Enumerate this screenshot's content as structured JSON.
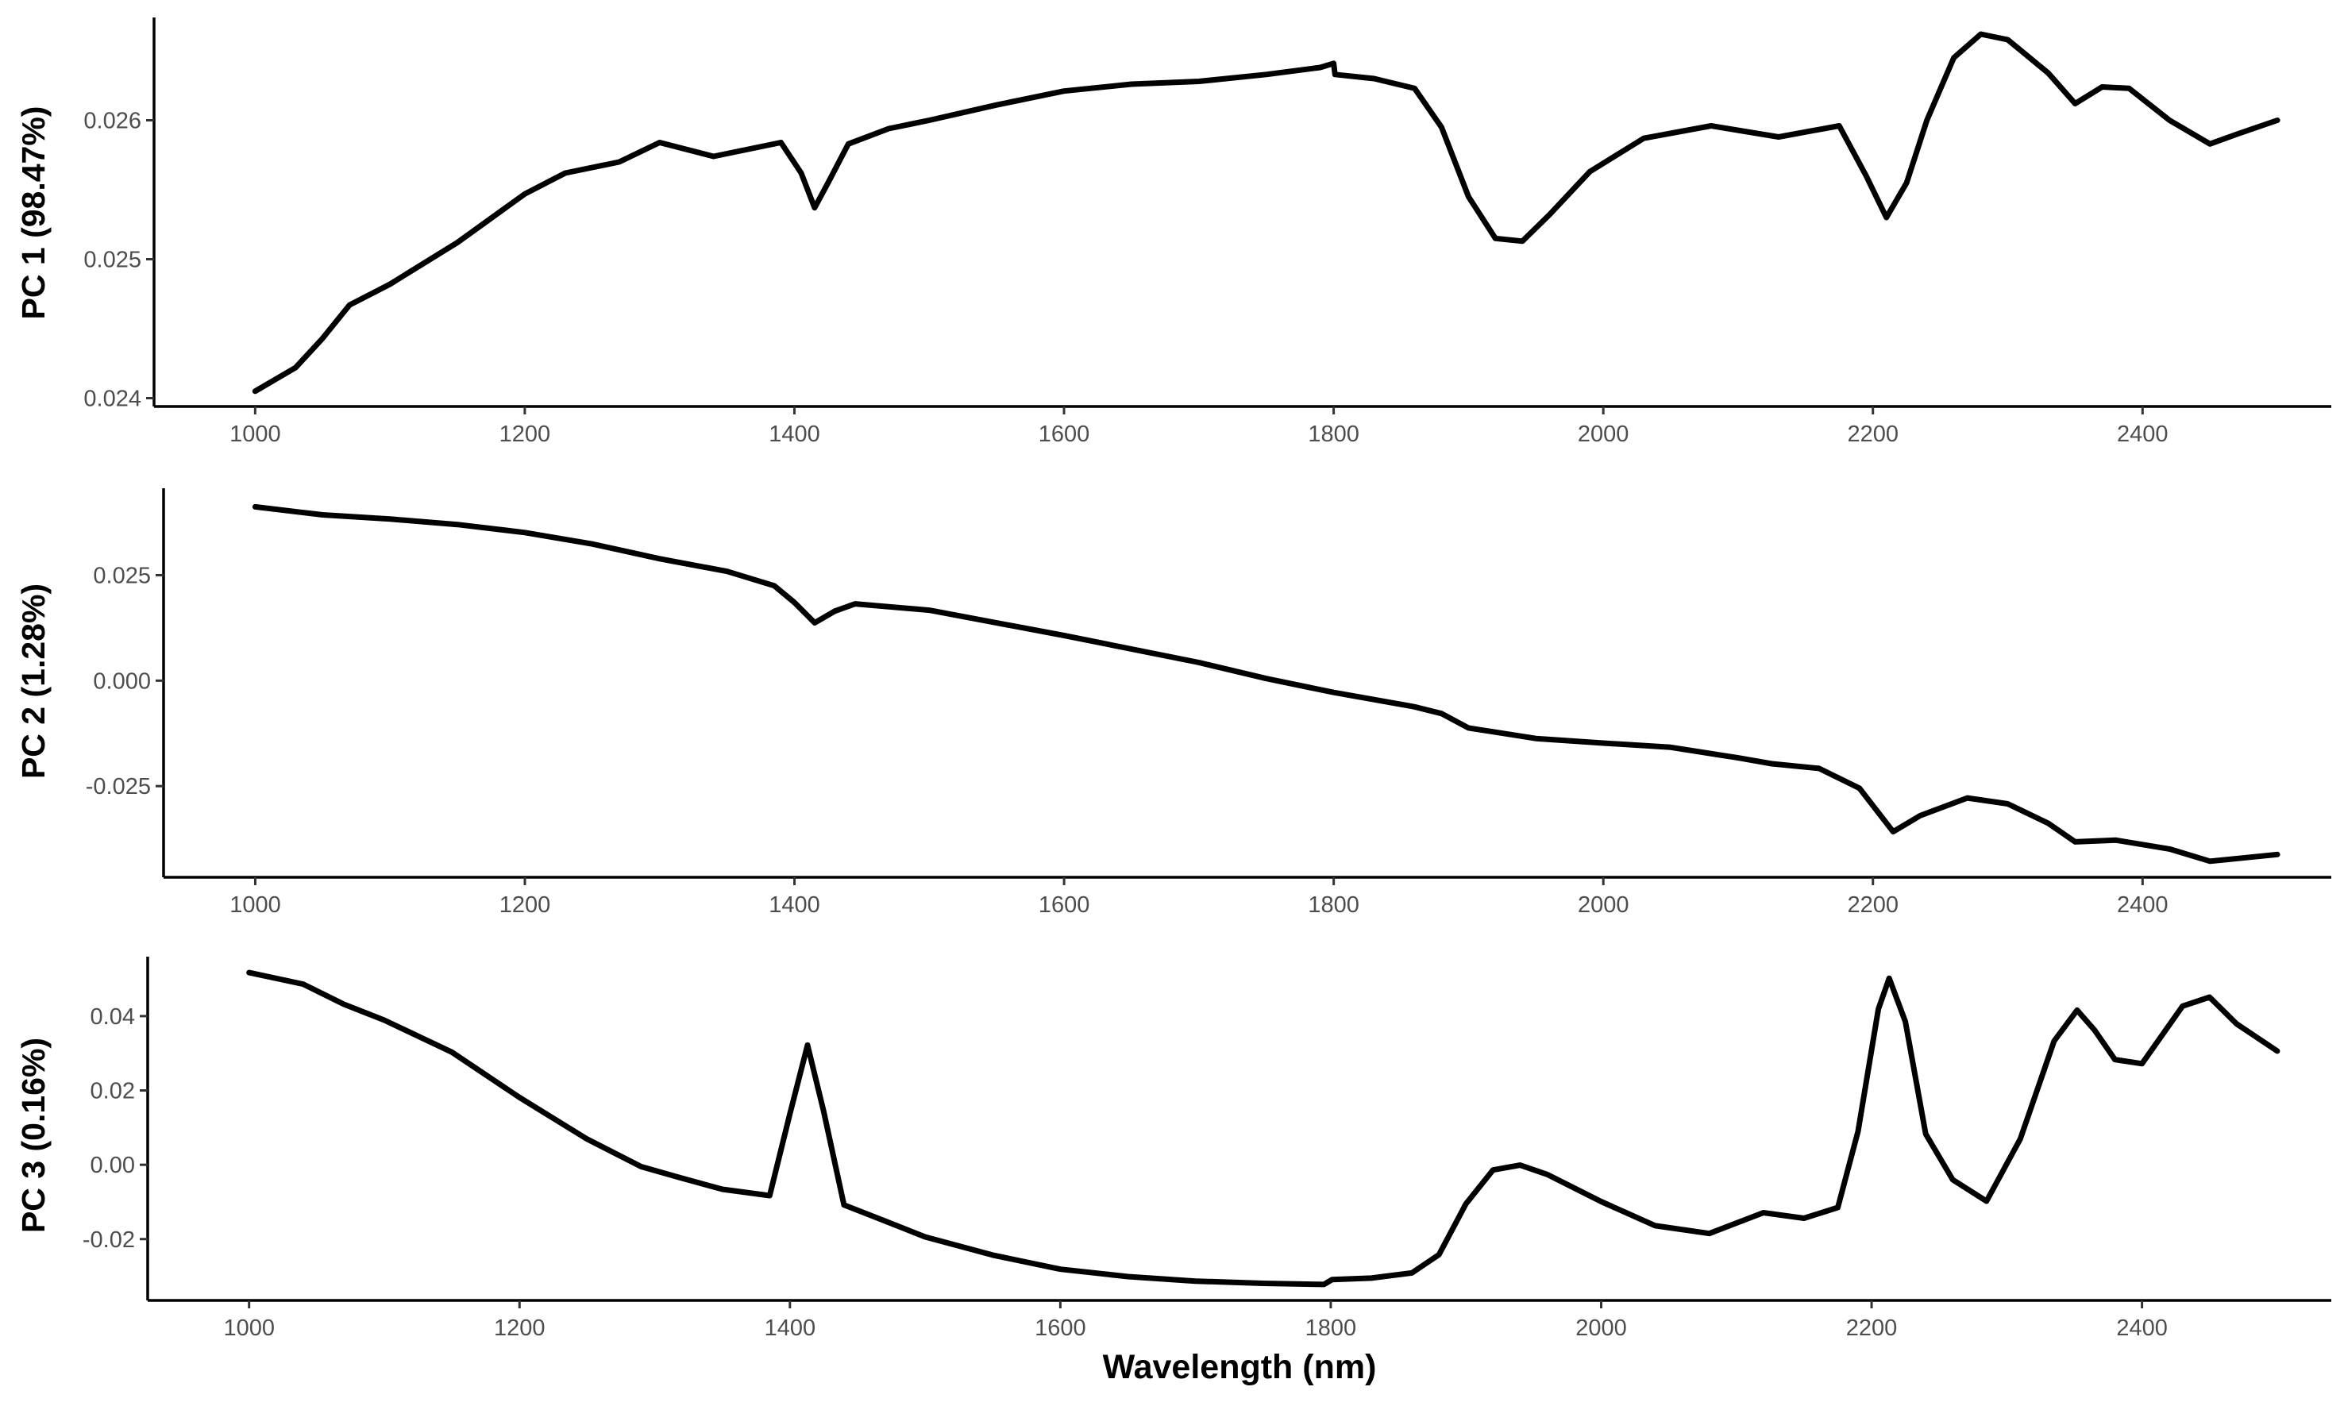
{
  "chart_data": [
    {
      "type": "line",
      "ylabel": "PC 1 (98.47%)",
      "xlabel": "",
      "xlim": [
        925,
        2540
      ],
      "ylim": [
        0.02394,
        0.02674
      ],
      "x_ticks": [
        1000,
        1200,
        1400,
        1600,
        1800,
        2000,
        2200,
        2400
      ],
      "x_tick_labels": [
        "1000",
        "1200",
        "1400",
        "1600",
        "1800",
        "2000",
        "2200",
        "2400"
      ],
      "y_ticks": [
        0.024,
        0.025,
        0.026
      ],
      "y_tick_labels": [
        "0.024",
        "0.025",
        "0.026"
      ],
      "grid": false,
      "series": [
        {
          "color": "#000000",
          "points": [
            [
              1000,
              0.02405
            ],
            [
              1030,
              0.02422
            ],
            [
              1050,
              0.02443
            ],
            [
              1070,
              0.02467
            ],
            [
              1100,
              0.02482
            ],
            [
              1150,
              0.02512
            ],
            [
              1200,
              0.02547
            ],
            [
              1230,
              0.02562
            ],
            [
              1270,
              0.0257
            ],
            [
              1300,
              0.02584
            ],
            [
              1340,
              0.02574
            ],
            [
              1370,
              0.0258
            ],
            [
              1390,
              0.02584
            ],
            [
              1405,
              0.02562
            ],
            [
              1415,
              0.02537
            ],
            [
              1425,
              0.02555
            ],
            [
              1440,
              0.02583
            ],
            [
              1470,
              0.02594
            ],
            [
              1500,
              0.026
            ],
            [
              1550,
              0.02611
            ],
            [
              1600,
              0.02621
            ],
            [
              1650,
              0.02626
            ],
            [
              1700,
              0.02628
            ],
            [
              1750,
              0.02633
            ],
            [
              1790,
              0.02638
            ],
            [
              1800,
              0.02641
            ],
            [
              1801,
              0.02633
            ],
            [
              1830,
              0.0263
            ],
            [
              1860,
              0.02623
            ],
            [
              1880,
              0.02595
            ],
            [
              1900,
              0.02545
            ],
            [
              1920,
              0.02515
            ],
            [
              1940,
              0.02513
            ],
            [
              1960,
              0.02532
            ],
            [
              1990,
              0.02563
            ],
            [
              2030,
              0.02587
            ],
            [
              2080,
              0.02596
            ],
            [
              2130,
              0.02588
            ],
            [
              2175,
              0.02596
            ],
            [
              2195,
              0.0256
            ],
            [
              2210,
              0.0253
            ],
            [
              2225,
              0.02555
            ],
            [
              2240,
              0.026
            ],
            [
              2260,
              0.02645
            ],
            [
              2280,
              0.02662
            ],
            [
              2300,
              0.02658
            ],
            [
              2330,
              0.02634
            ],
            [
              2350,
              0.02612
            ],
            [
              2370,
              0.02624
            ],
            [
              2390,
              0.02623
            ],
            [
              2420,
              0.026
            ],
            [
              2450,
              0.02583
            ],
            [
              2470,
              0.0259
            ],
            [
              2500,
              0.026
            ]
          ]
        }
      ]
    },
    {
      "type": "line",
      "ylabel": "PC 2 (1.28%)",
      "xlabel": "",
      "xlim": [
        932,
        2540
      ],
      "ylim": [
        -0.0466,
        0.0456
      ],
      "x_ticks": [
        1000,
        1200,
        1400,
        1600,
        1800,
        2000,
        2200,
        2400
      ],
      "x_tick_labels": [
        "1000",
        "1200",
        "1400",
        "1600",
        "1800",
        "2000",
        "2200",
        "2400"
      ],
      "y_ticks": [
        0.025,
        0.0,
        -0.025
      ],
      "y_tick_labels": [
        "0.025",
        "0.000",
        "-0.025"
      ],
      "grid": false,
      "series": [
        {
          "color": "#000000",
          "points": [
            [
              1000,
              0.0412
            ],
            [
              1050,
              0.0393
            ],
            [
              1100,
              0.0383
            ],
            [
              1150,
              0.037
            ],
            [
              1200,
              0.0351
            ],
            [
              1250,
              0.0324
            ],
            [
              1300,
              0.0289
            ],
            [
              1350,
              0.0259
            ],
            [
              1385,
              0.0225
            ],
            [
              1400,
              0.0185
            ],
            [
              1415,
              0.0137
            ],
            [
              1430,
              0.0165
            ],
            [
              1445,
              0.0182
            ],
            [
              1500,
              0.0167
            ],
            [
              1600,
              0.0107
            ],
            [
              1700,
              0.0043
            ],
            [
              1750,
              0.0005
            ],
            [
              1800,
              -0.0028
            ],
            [
              1860,
              -0.0062
            ],
            [
              1880,
              -0.0078
            ],
            [
              1900,
              -0.0112
            ],
            [
              1950,
              -0.0137
            ],
            [
              2000,
              -0.0148
            ],
            [
              2050,
              -0.0158
            ],
            [
              2100,
              -0.0183
            ],
            [
              2125,
              -0.0197
            ],
            [
              2160,
              -0.0208
            ],
            [
              2190,
              -0.0255
            ],
            [
              2215,
              -0.0358
            ],
            [
              2235,
              -0.032
            ],
            [
              2270,
              -0.0278
            ],
            [
              2300,
              -0.0292
            ],
            [
              2330,
              -0.0338
            ],
            [
              2350,
              -0.0382
            ],
            [
              2380,
              -0.0378
            ],
            [
              2420,
              -0.0399
            ],
            [
              2450,
              -0.0428
            ],
            [
              2500,
              -0.0412
            ]
          ]
        }
      ]
    },
    {
      "type": "line",
      "ylabel": "PC 3 (0.16%)",
      "xlabel": "Wavelength (nm)",
      "xlim": [
        925,
        2540
      ],
      "ylim": [
        -0.0365,
        0.056
      ],
      "x_ticks": [
        1000,
        1200,
        1400,
        1600,
        1800,
        2000,
        2200,
        2400
      ],
      "x_tick_labels": [
        "1000",
        "1200",
        "1400",
        "1600",
        "1800",
        "2000",
        "2200",
        "2400"
      ],
      "y_ticks": [
        0.04,
        0.02,
        0.0,
        -0.02
      ],
      "y_tick_labels": [
        "0.04",
        "0.02",
        "0.00",
        "-0.02"
      ],
      "grid": false,
      "series": [
        {
          "color": "#000000",
          "points": [
            [
              1000,
              0.0517
            ],
            [
              1040,
              0.0486
            ],
            [
              1070,
              0.0432
            ],
            [
              1100,
              0.0389
            ],
            [
              1150,
              0.0303
            ],
            [
              1200,
              0.0181
            ],
            [
              1250,
              0.0069
            ],
            [
              1290,
              -0.0005
            ],
            [
              1320,
              -0.0036
            ],
            [
              1350,
              -0.0066
            ],
            [
              1385,
              -0.0083
            ],
            [
              1400,
              0.0137
            ],
            [
              1413,
              0.0322
            ],
            [
              1425,
              0.0143
            ],
            [
              1440,
              -0.0108
            ],
            [
              1470,
              -0.0151
            ],
            [
              1500,
              -0.0194
            ],
            [
              1550,
              -0.0243
            ],
            [
              1600,
              -0.0281
            ],
            [
              1650,
              -0.0301
            ],
            [
              1700,
              -0.0313
            ],
            [
              1750,
              -0.0319
            ],
            [
              1795,
              -0.0322
            ],
            [
              1801,
              -0.0309
            ],
            [
              1830,
              -0.0305
            ],
            [
              1860,
              -0.0291
            ],
            [
              1880,
              -0.0242
            ],
            [
              1900,
              -0.0105
            ],
            [
              1920,
              -0.0014
            ],
            [
              1940,
              -0.0001
            ],
            [
              1960,
              -0.0026
            ],
            [
              2000,
              -0.0099
            ],
            [
              2040,
              -0.0164
            ],
            [
              2080,
              -0.0185
            ],
            [
              2120,
              -0.0129
            ],
            [
              2150,
              -0.0144
            ],
            [
              2175,
              -0.0115
            ],
            [
              2190,
              0.009
            ],
            [
              2205,
              0.0419
            ],
            [
              2213,
              0.0502
            ],
            [
              2225,
              0.0385
            ],
            [
              2240,
              0.0083
            ],
            [
              2260,
              -0.004
            ],
            [
              2285,
              -0.0098
            ],
            [
              2310,
              0.007
            ],
            [
              2335,
              0.0333
            ],
            [
              2352,
              0.0416
            ],
            [
              2365,
              0.0362
            ],
            [
              2380,
              0.0283
            ],
            [
              2400,
              0.0272
            ],
            [
              2430,
              0.0427
            ],
            [
              2450,
              0.0451
            ],
            [
              2470,
              0.0379
            ],
            [
              2500,
              0.0306
            ]
          ]
        }
      ]
    }
  ]
}
